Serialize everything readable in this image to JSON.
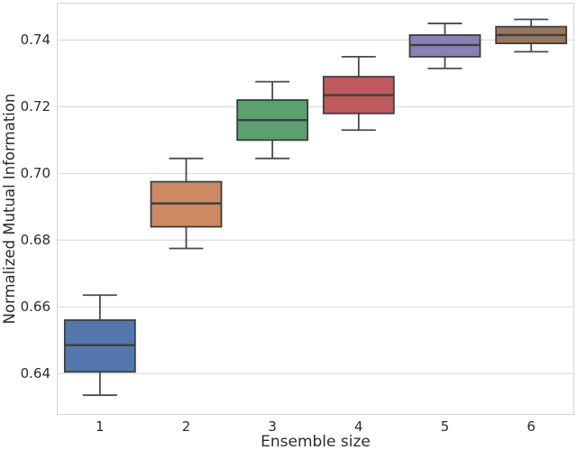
{
  "figure": {
    "background": "#ffffff"
  },
  "colors": {
    "box_edge": "#3d3d3d",
    "whisker": "#4a4a4a",
    "median_line": "#3d3d3d",
    "grid_line": "#dcdcdc",
    "spine": "#d4d4d4",
    "text": "#2b2b2b",
    "background": "#ffffff"
  },
  "chart_data": {
    "type": "box",
    "title": "",
    "xlabel": "Ensemble size",
    "ylabel": "Normalized Mutual Information",
    "categories": [
      "1",
      "2",
      "3",
      "4",
      "5",
      "6"
    ],
    "ytick_labels": [
      "0.64",
      "0.66",
      "0.68",
      "0.70",
      "0.72",
      "0.74"
    ],
    "ytick_values": [
      0.64,
      0.66,
      0.68,
      0.7,
      0.72,
      0.74
    ],
    "ylim": [
      0.6276,
      0.7512
    ],
    "grid": "horizontal",
    "legend_position": "none",
    "series": [
      {
        "category": "1",
        "color": "#5377ad",
        "whisker_low": 0.6335,
        "q1": 0.6405,
        "median": 0.6485,
        "q3": 0.656,
        "whisker_high": 0.6635
      },
      {
        "category": "2",
        "color": "#cd8a62",
        "whisker_low": 0.6775,
        "q1": 0.684,
        "median": 0.691,
        "q3": 0.6975,
        "whisker_high": 0.7045
      },
      {
        "category": "3",
        "color": "#5ba06f",
        "whisker_low": 0.7045,
        "q1": 0.71,
        "median": 0.716,
        "q3": 0.722,
        "whisker_high": 0.7275
      },
      {
        "category": "4",
        "color": "#bf5b5e",
        "whisker_low": 0.713,
        "q1": 0.718,
        "median": 0.7235,
        "q3": 0.729,
        "whisker_high": 0.735
      },
      {
        "category": "5",
        "color": "#8b7fb5",
        "whisker_low": 0.7315,
        "q1": 0.735,
        "median": 0.7385,
        "q3": 0.7415,
        "whisker_high": 0.745
      },
      {
        "category": "6",
        "color": "#95785f",
        "whisker_low": 0.7365,
        "q1": 0.739,
        "median": 0.7415,
        "q3": 0.744,
        "whisker_high": 0.7462
      }
    ]
  }
}
